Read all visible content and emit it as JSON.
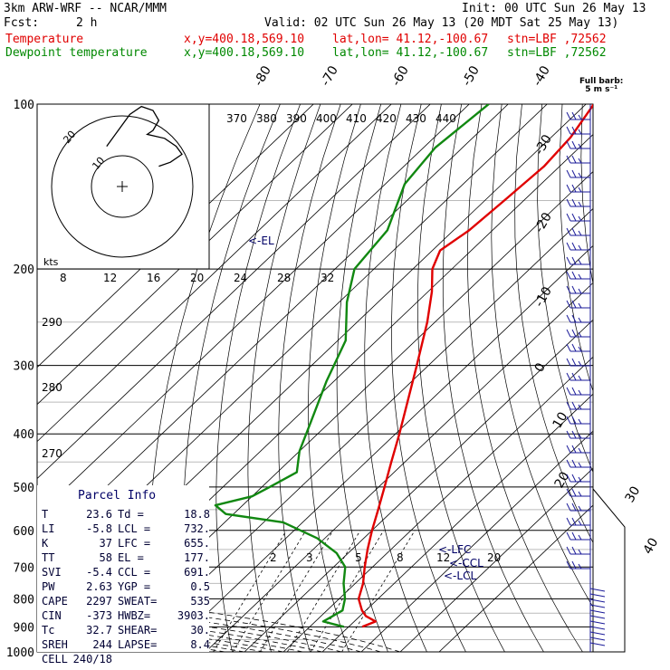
{
  "header": {
    "model": "3km ARW-WRF -- NCAR/MMM",
    "init": "Init: 00 UTC Sun 26 May 13",
    "fcst_label": "Fcst:",
    "fcst_value": "2 h",
    "valid": "Valid: 02 UTC Sun 26 May 13 (20 MDT Sat 25 May 13)",
    "temp_line": {
      "label": "Temperature",
      "xy": "x,y=400.18,569.10",
      "latlon": "lat,lon= 41.12,-100.67",
      "stn": "stn=LBF ,72562"
    },
    "dew_line": {
      "label": "Dewpoint temperature",
      "xy": "x,y=400.18,569.10",
      "latlon": "lat,lon= 41.12,-100.67",
      "stn": "stn=LBF ,72562"
    }
  },
  "colors": {
    "temperature": "#e00000",
    "dewpoint": "#118811",
    "grid": "#000000",
    "wind": "#1a1a99",
    "parcel_text": "#000066"
  },
  "barb_key": {
    "line1": "Full barb:",
    "line2": "5 m s⁻¹"
  },
  "hodograph": {
    "ring_labels": [
      "10",
      "20"
    ],
    "trace": [
      [
        4,
        -2
      ],
      [
        8,
        -10
      ],
      [
        12,
        -18
      ],
      [
        16,
        -22
      ],
      [
        20,
        -20
      ],
      [
        22,
        -15
      ],
      [
        20,
        -10
      ],
      [
        18,
        -8
      ],
      [
        24,
        -6
      ],
      [
        28,
        -2
      ],
      [
        30,
        2
      ],
      [
        26,
        6
      ],
      [
        22,
        8
      ]
    ],
    "units": "kts",
    "speed_labels": [
      "8",
      "12",
      "16",
      "20",
      "24",
      "28",
      "32"
    ]
  },
  "parcel_info": {
    "title": "Parcel Info",
    "rows": [
      {
        "k1": "T",
        "v1": "23.6",
        "k2": "Td =",
        "v2": "18.8"
      },
      {
        "k1": "LI",
        "v1": "-5.8",
        "k2": "LCL =",
        "v2": "732."
      },
      {
        "k1": "K",
        "v1": "37",
        "k2": "LFC =",
        "v2": "655."
      },
      {
        "k1": "TT",
        "v1": "58",
        "k2": "EL =",
        "v2": "177."
      },
      {
        "k1": "SVI",
        "v1": "-5.4",
        "k2": "CCL =",
        "v2": "691."
      },
      {
        "k1": "PW",
        "v1": "2.63",
        "k2": "YGP =",
        "v2": "0.5"
      },
      {
        "k1": "CAPE",
        "v1": "2297",
        "k2": "SWEAT=",
        "v2": "535"
      },
      {
        "k1": "CIN",
        "v1": "-373",
        "k2": "HWBZ=",
        "v2": "3903."
      },
      {
        "k1": "Tc",
        "v1": "32.7",
        "k2": "SHEAR=",
        "v2": "30."
      },
      {
        "k1": "SREH",
        "v1": "244",
        "k2": "LAPSE=",
        "v2": "8.4"
      },
      {
        "k1": "CELL",
        "v1": "240/18",
        "k2": "",
        "v2": ""
      }
    ]
  },
  "chart_data": {
    "type": "line",
    "title": "",
    "y_axis": "pressure (hPa), log scale",
    "pressure_levels": [
      100,
      200,
      300,
      400,
      500,
      600,
      700,
      800,
      900,
      1000
    ],
    "isotherm_labels": [
      "-80",
      "-70",
      "-60",
      "-50",
      "-40",
      "-30",
      "-20",
      "-10",
      "0",
      "10",
      "20",
      "30",
      "40"
    ],
    "theta_labels": [
      "370",
      "380",
      "390",
      "400",
      "410",
      "420",
      "430",
      "440"
    ],
    "theta_left_labels": [
      "290",
      "280",
      "270"
    ],
    "mixing_ratio_labels": [
      "2",
      "3",
      "5",
      "8",
      "12",
      "20"
    ],
    "annotations": [
      "<-EL",
      "<-LFC",
      "<-CCL",
      "<-LCL"
    ],
    "series": [
      {
        "name": "Temperature",
        "color": "#e00000",
        "points": [
          [
            900,
            23.5
          ],
          [
            880,
            25.5
          ],
          [
            860,
            21.5
          ],
          [
            840,
            19
          ],
          [
            800,
            15
          ],
          [
            750,
            12
          ],
          [
            700,
            8
          ],
          [
            650,
            4
          ],
          [
            600,
            0
          ],
          [
            550,
            -4
          ],
          [
            500,
            -8.5
          ],
          [
            450,
            -13.5
          ],
          [
            400,
            -19
          ],
          [
            350,
            -25.5
          ],
          [
            300,
            -33
          ],
          [
            250,
            -42
          ],
          [
            220,
            -49
          ],
          [
            200,
            -55
          ],
          [
            185,
            -58
          ],
          [
            170,
            -56
          ],
          [
            150,
            -55
          ],
          [
            130,
            -54
          ],
          [
            115,
            -55
          ],
          [
            100,
            -58
          ]
        ]
      },
      {
        "name": "Dewpoint temperature",
        "color": "#118811",
        "points": [
          [
            900,
            18.8
          ],
          [
            880,
            12
          ],
          [
            860,
            13
          ],
          [
            840,
            14
          ],
          [
            800,
            11.5
          ],
          [
            750,
            7
          ],
          [
            700,
            3
          ],
          [
            660,
            -3
          ],
          [
            620,
            -12
          ],
          [
            580,
            -25
          ],
          [
            560,
            -42
          ],
          [
            540,
            -47
          ],
          [
            520,
            -40
          ],
          [
            500,
            -38
          ],
          [
            470,
            -35
          ],
          [
            430,
            -40
          ],
          [
            380,
            -45
          ],
          [
            320,
            -52
          ],
          [
            270,
            -58
          ],
          [
            230,
            -68
          ],
          [
            200,
            -75
          ],
          [
            170,
            -77
          ],
          [
            140,
            -85
          ],
          [
            120,
            -87
          ],
          [
            100,
            -85
          ]
        ]
      }
    ]
  }
}
